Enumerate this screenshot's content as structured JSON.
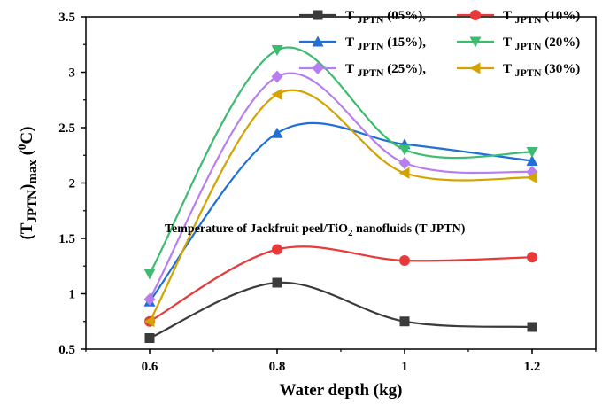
{
  "chart_data": {
    "type": "line",
    "x": [
      0.6,
      0.8,
      1.0,
      1.2
    ],
    "x_ticks": [
      "0.6",
      "0.8",
      "1",
      "1.2"
    ],
    "y_ticks": [
      "0.5",
      "1",
      "1.5",
      "2",
      "2.5",
      "3",
      "3.5"
    ],
    "xlim": [
      0.5,
      1.3
    ],
    "ylim": [
      0.5,
      3.5
    ],
    "xlabel": "Water depth (kg)",
    "ylabel": {
      "main": "(T",
      "sub1": "JPTN",
      "mid": ")",
      "sub2": "max",
      "unit": " (",
      "sup": "0",
      "unit_end": "C)"
    },
    "annotation": {
      "pre": "Temperature of Jackfruit peel/TiO",
      "sub": "2",
      "post": " nanofluids (T JPTN)"
    },
    "grid": false,
    "legend_position": "top-right",
    "smooth": true,
    "series": [
      {
        "name": "T JPTN (05%),",
        "label_main": "T ",
        "label_sub": "JPTN",
        "label_rest": " (05%),",
        "color": "#3b3b3b",
        "marker": "square",
        "values": [
          0.6,
          1.1,
          0.75,
          0.7
        ]
      },
      {
        "name": "T JPTN (10%)",
        "label_main": "T ",
        "label_sub": "JPTN",
        "label_rest": " (10%)",
        "color": "#e8393b",
        "marker": "circle",
        "values": [
          0.75,
          1.4,
          1.3,
          1.33
        ]
      },
      {
        "name": "T JPTN (15%),",
        "label_main": "T ",
        "label_sub": "JPTN",
        "label_rest": " (15%),",
        "color": "#1f6fd6",
        "marker": "triangle-up",
        "values": [
          0.93,
          2.45,
          2.35,
          2.2
        ]
      },
      {
        "name": "T JPTN (20%)",
        "label_main": "T ",
        "label_sub": "JPTN",
        "label_rest": " (20%)",
        "color": "#3dbb6f",
        "marker": "triangle-down",
        "values": [
          1.18,
          3.2,
          2.3,
          2.28
        ]
      },
      {
        "name": "T JPTN (25%),",
        "label_main": "T ",
        "label_sub": "JPTN",
        "label_rest": " (25%),",
        "color": "#b77ef0",
        "marker": "diamond",
        "values": [
          0.95,
          2.96,
          2.18,
          2.1
        ]
      },
      {
        "name": "T JPTN (30%)",
        "label_main": "T ",
        "label_sub": "JPTN",
        "label_rest": " (30%)",
        "color": "#d4a300",
        "marker": "triangle-left",
        "values": [
          0.75,
          2.8,
          2.09,
          2.05
        ]
      }
    ]
  }
}
